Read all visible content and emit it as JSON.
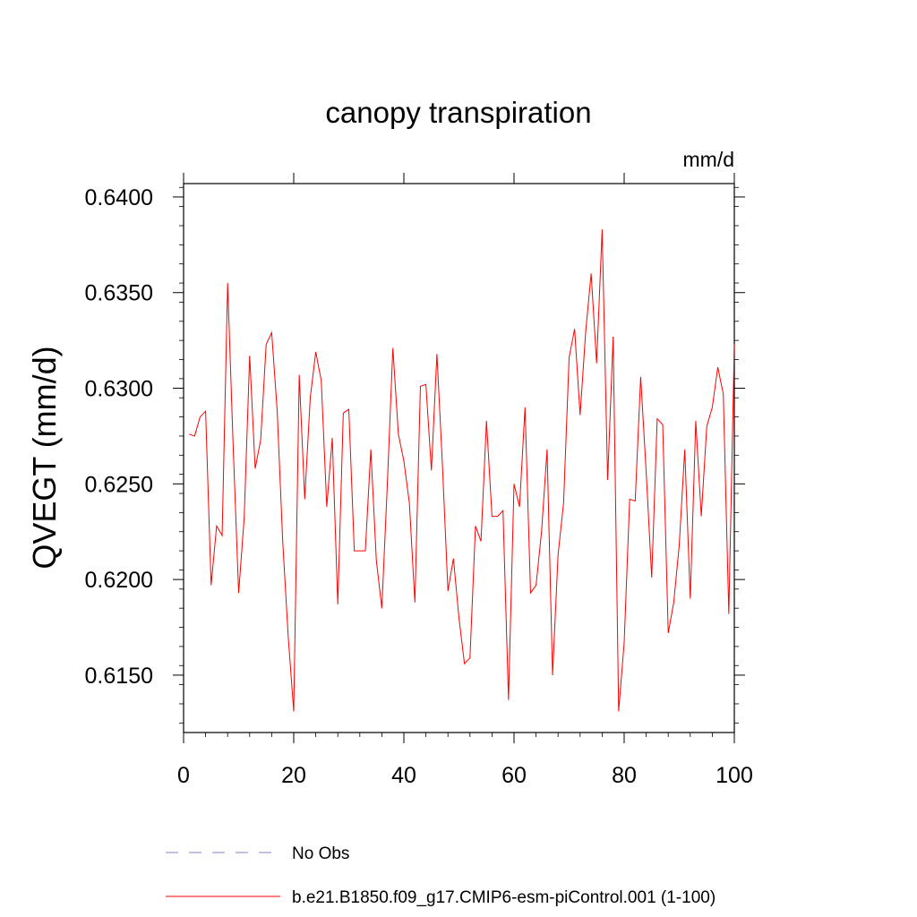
{
  "chart_data": {
    "type": "line",
    "title": "canopy transpiration",
    "units": "mm/d",
    "xlabel": "",
    "ylabel": "QVEGT  (mm/d)",
    "xlim": [
      0,
      100
    ],
    "ylim": [
      0.612,
      0.6407
    ],
    "xticks": [
      "0",
      "20",
      "40",
      "60",
      "80",
      "100"
    ],
    "yticks": [
      "0.6150",
      "0.6200",
      "0.6250",
      "0.6300",
      "0.6350",
      "0.6400"
    ],
    "grid": false,
    "legend_placement": "bottom",
    "series": [
      {
        "name": "No Obs",
        "color": "#8080c0",
        "style": "dashed",
        "x": [],
        "values": []
      },
      {
        "name": "b.e21.B1850.f09_g17.CMIP6-esm-piControl.001 (1-100)",
        "color": "#ff0000",
        "style": "solid",
        "x": [
          1,
          2,
          3,
          4,
          5,
          6,
          7,
          8,
          9,
          10,
          11,
          12,
          13,
          14,
          15,
          16,
          17,
          18,
          19,
          20,
          21,
          22,
          23,
          24,
          25,
          26,
          27,
          28,
          29,
          30,
          31,
          32,
          33,
          34,
          35,
          36,
          37,
          38,
          39,
          40,
          41,
          42,
          43,
          44,
          45,
          46,
          47,
          48,
          49,
          50,
          51,
          52,
          53,
          54,
          55,
          56,
          57,
          58,
          59,
          60,
          61,
          62,
          63,
          64,
          65,
          66,
          67,
          68,
          69,
          70,
          71,
          72,
          73,
          74,
          75,
          76,
          77,
          78,
          79,
          80,
          81,
          82,
          83,
          84,
          85,
          86,
          87,
          88,
          89,
          90,
          91,
          92,
          93,
          94,
          95,
          96,
          97,
          98,
          99,
          100
        ],
        "values": [
          0.6276,
          0.6275,
          0.6285,
          0.6288,
          0.6197,
          0.6228,
          0.6223,
          0.6355,
          0.627,
          0.6193,
          0.6232,
          0.6317,
          0.6258,
          0.6273,
          0.6323,
          0.6329,
          0.6288,
          0.622,
          0.617,
          0.6131,
          0.6307,
          0.6242,
          0.6295,
          0.6319,
          0.6304,
          0.6238,
          0.6274,
          0.6187,
          0.6287,
          0.6289,
          0.6215,
          0.6215,
          0.6215,
          0.6268,
          0.621,
          0.6185,
          0.625,
          0.6321,
          0.6276,
          0.6262,
          0.624,
          0.6188,
          0.6301,
          0.6302,
          0.6257,
          0.6318,
          0.626,
          0.6194,
          0.6211,
          0.618,
          0.6156,
          0.6159,
          0.6228,
          0.622,
          0.6283,
          0.6233,
          0.6233,
          0.6236,
          0.6137,
          0.625,
          0.6238,
          0.629,
          0.6193,
          0.6197,
          0.6225,
          0.6268,
          0.615,
          0.6213,
          0.624,
          0.6316,
          0.6331,
          0.6286,
          0.6329,
          0.636,
          0.6313,
          0.6383,
          0.6252,
          0.6327,
          0.6131,
          0.6167,
          0.6242,
          0.6241,
          0.6306,
          0.6256,
          0.6201,
          0.6284,
          0.6281,
          0.6172,
          0.6188,
          0.6218,
          0.6268,
          0.619,
          0.6283,
          0.6233,
          0.628,
          0.629,
          0.6311,
          0.6297,
          0.6182,
          0.6323
        ]
      }
    ]
  }
}
